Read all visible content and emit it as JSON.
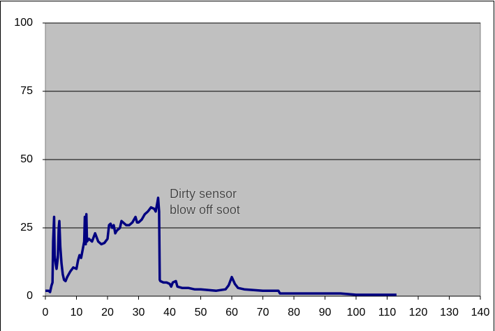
{
  "chart_data": {
    "type": "line",
    "annotations": [
      "Dirty sensor",
      "blow off soot"
    ],
    "x": [
      0,
      1,
      1.5,
      2,
      2.3,
      2.5,
      2.8,
      3,
      3.3,
      3.6,
      4,
      4.3,
      4.5,
      4.8,
      5.2,
      5.6,
      6,
      6.5,
      7,
      8,
      9,
      10,
      10.5,
      11,
      11.5,
      12,
      12.5,
      12.7,
      13,
      13.2,
      13.4,
      14,
      15,
      16,
      17,
      18,
      19,
      20,
      20.5,
      21,
      21.5,
      22,
      22.5,
      23,
      24,
      24.5,
      25,
      26,
      27,
      28,
      29,
      29.5,
      30,
      31,
      32,
      33,
      34,
      35,
      35.5,
      36,
      36.3,
      36.6,
      36.8,
      37,
      38,
      39,
      40,
      40.5,
      41,
      42,
      42.5,
      44,
      46,
      48,
      50,
      55,
      58,
      59,
      60,
      61,
      62,
      64,
      70,
      75,
      75.5,
      80,
      85,
      90,
      95,
      100,
      110,
      113
    ],
    "values": [
      2,
      2,
      1.5,
      4,
      5,
      20,
      29,
      15,
      12,
      10,
      14,
      25,
      27.5,
      18,
      12,
      8,
      6,
      5.5,
      7,
      9,
      10.5,
      10,
      13,
      15,
      14,
      17,
      20,
      29,
      19,
      30,
      20,
      21,
      20,
      23,
      20,
      19,
      19.5,
      21,
      26,
      26.5,
      25,
      26,
      23,
      24,
      25,
      27.5,
      27,
      26,
      26,
      27,
      29,
      27,
      27,
      28,
      30,
      31,
      32.5,
      32,
      31,
      34,
      36,
      31,
      6,
      5.5,
      5,
      5,
      4.5,
      3.5,
      5,
      5.5,
      3.5,
      3,
      3,
      2.5,
      2.5,
      2,
      2.5,
      4,
      7,
      4.5,
      3,
      2.5,
      2,
      2,
      1,
      1,
      1,
      1,
      1,
      0.5,
      0.5,
      0.5
    ],
    "color": "#000080",
    "plot_background": "#c0c0c0",
    "xlim": [
      0,
      140
    ],
    "xticks": [
      0,
      10,
      20,
      30,
      40,
      50,
      60,
      70,
      80,
      90,
      100,
      110,
      120,
      130,
      140
    ],
    "ylim": [
      0,
      100
    ],
    "yticks": [
      0,
      25,
      50,
      75,
      100
    ],
    "grid": true
  }
}
